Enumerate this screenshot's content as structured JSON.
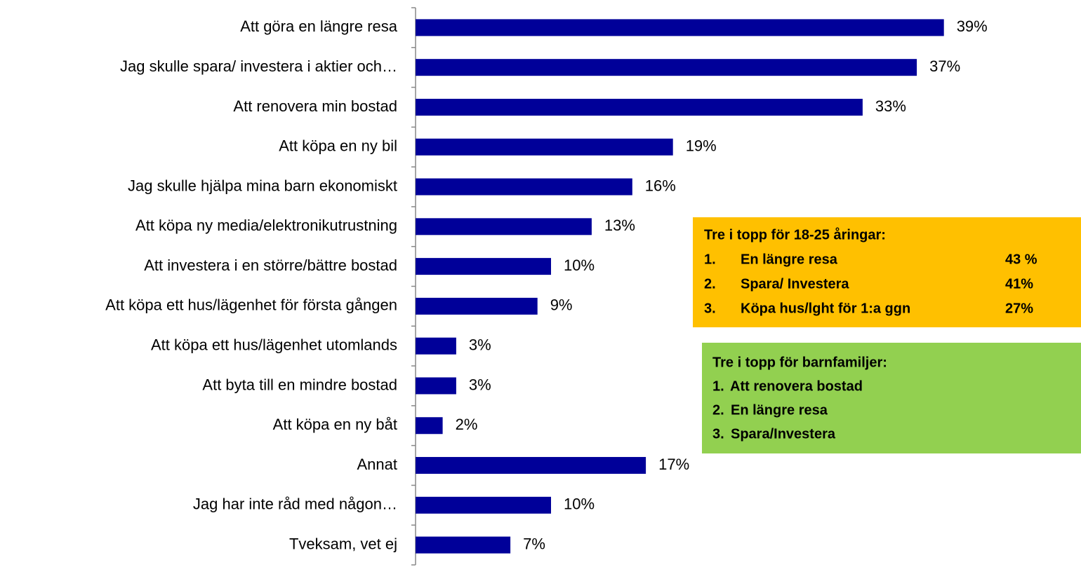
{
  "chart_data": {
    "type": "bar",
    "orientation": "horizontal",
    "categories": [
      "Att göra en längre resa",
      "Jag skulle spara/ investera i aktier och…",
      "Att renovera min bostad",
      "Att köpa en ny bil",
      "Jag skulle hjälpa mina barn ekonomiskt",
      "Att köpa ny media/elektronikutrustning",
      "Att investera i en större/bättre bostad",
      "Att köpa ett hus/lägenhet för första gången",
      "Att köpa ett hus/lägenhet utomlands",
      "Att byta till en mindre bostad",
      "Att köpa en ny båt",
      "Annat",
      "Jag har inte råd med någon…",
      "Tveksam, vet ej"
    ],
    "values": [
      39,
      37,
      33,
      19,
      16,
      13,
      10,
      9,
      3,
      3,
      2,
      17,
      10,
      7
    ],
    "value_labels": [
      "39%",
      "37%",
      "33%",
      "19%",
      "16%",
      "13%",
      "10%",
      "9%",
      "3%",
      "3%",
      "2%",
      "17%",
      "10%",
      "7%"
    ],
    "color": "#000099",
    "xlim": [
      0,
      40
    ],
    "annotations": [
      {
        "title": "Tre i topp för 18-25 åringar:",
        "color": "#FFC000",
        "items": [
          {
            "number": "1.",
            "text": "En längre resa",
            "value": "43 %"
          },
          {
            "number": "2.",
            "text": "Spara/ Investera",
            "value": "41%"
          },
          {
            "number": "3.",
            "text": "Köpa hus/lght för 1:a ggn",
            "value": "27%"
          }
        ]
      },
      {
        "title": "Tre i topp för barnfamiljer:",
        "color": "#92D050",
        "items": [
          {
            "number": "1.",
            "text": "Att renovera bostad"
          },
          {
            "number": "2.",
            "text": "En längre resa"
          },
          {
            "number": "3.",
            "text": "Spara/Investera"
          }
        ]
      }
    ]
  }
}
